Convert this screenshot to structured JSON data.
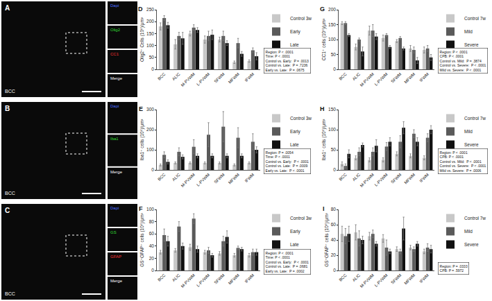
{
  "image_panels": [
    {
      "label": "A",
      "region": "BCC",
      "insets": [
        {
          "text": "Dapi",
          "color": "#4a6cff"
        },
        {
          "text": "Olig2",
          "color": "#33dd33"
        },
        {
          "text": "CC1",
          "color": "#ff3333"
        },
        {
          "text": "Merge",
          "color": "#ffffff"
        }
      ]
    },
    {
      "label": "B",
      "region": "BCC",
      "insets": [
        {
          "text": "Dapi",
          "color": "#4a6cff"
        },
        {
          "text": "Iba1",
          "color": "#33dd33"
        },
        {
          "text": "Merge",
          "color": "#ffffff"
        }
      ]
    },
    {
      "label": "C",
      "region": "BCC",
      "insets": [
        {
          "text": "Dapi",
          "color": "#4a6cff"
        },
        {
          "text": "GS",
          "color": "#33dd33"
        },
        {
          "text": "GFAP",
          "color": "#ff3333"
        },
        {
          "text": "Merge",
          "color": "#ffffff"
        }
      ]
    }
  ],
  "chart_data": [
    {
      "panel": "D",
      "type": "bar",
      "ylabel": "Olig2⁺ Cells (10⁶)/μm³",
      "categories": [
        "BCC",
        "ALIC",
        "M-PVWM",
        "L-PVWM",
        "SFWM",
        "MFWM",
        "IFWM"
      ],
      "series": [
        {
          "name": "Control 3w",
          "color": "#c8c8c8",
          "values": [
            180,
            105,
            150,
            125,
            125,
            30,
            35
          ],
          "errors": [
            15,
            20,
            10,
            15,
            10,
            5,
            5
          ]
        },
        {
          "name": "Early",
          "color": "#5a5a5a",
          "values": [
            215,
            140,
            175,
            140,
            140,
            110,
            80
          ],
          "errors": [
            10,
            15,
            12,
            20,
            20,
            20,
            10
          ]
        },
        {
          "name": "Late",
          "color": "#111111",
          "values": [
            185,
            130,
            165,
            145,
            110,
            65,
            55
          ],
          "errors": [
            12,
            25,
            10,
            20,
            10,
            10,
            15
          ]
        }
      ],
      "ylim": [
        0,
        250
      ],
      "yticks": [
        0,
        50,
        100,
        150,
        200,
        250
      ],
      "stats": [
        "Region: P < .0001",
        "Time: P < .0001",
        "Control vs. Early:  P = .0013",
        "Control vs. Late:  P = .7236",
        "Early vs. Late:  P = .0675"
      ]
    },
    {
      "panel": "E",
      "type": "bar",
      "ylabel": "Iba1⁺ cells (10⁶)/μm³",
      "categories": [
        "BCC",
        "ALIC",
        "M-PVWM",
        "L-PVWM",
        "SFWM",
        "MFWM",
        "IFWM"
      ],
      "series": [
        {
          "name": "Control 3w",
          "color": "#c8c8c8",
          "values": [
            25,
            35,
            35,
            35,
            35,
            25,
            35
          ],
          "errors": [
            5,
            5,
            5,
            5,
            5,
            5,
            5
          ]
        },
        {
          "name": "Early",
          "color": "#5a5a5a",
          "values": [
            75,
            90,
            115,
            175,
            215,
            160,
            140
          ],
          "errors": [
            15,
            20,
            35,
            60,
            75,
            50,
            40
          ]
        },
        {
          "name": "Late",
          "color": "#111111",
          "values": [
            40,
            65,
            70,
            70,
            70,
            70,
            100
          ],
          "errors": [
            10,
            10,
            10,
            10,
            10,
            10,
            15
          ]
        }
      ],
      "ylim": [
        0,
        300
      ],
      "yticks": [
        0,
        100,
        200,
        300
      ],
      "stats": [
        "Region: P = .0054",
        "Time: P < .0001",
        "Control vs. Early:  P < .0001",
        "Control vs. Late:  P = .0009",
        "Early vs. Late:  P < .0001"
      ]
    },
    {
      "panel": "F",
      "type": "bar",
      "ylabel": "GS⁺GFAP⁺ cells (10⁶)/μm³",
      "categories": [
        "BCC",
        "ALIC",
        "M-PVWM",
        "L-PVWM",
        "SFWM",
        "MFWM",
        "IFWM"
      ],
      "series": [
        {
          "name": "Control 3w",
          "color": "#c8c8c8",
          "values": [
            30,
            33,
            38,
            30,
            28,
            25,
            25
          ],
          "errors": [
            3,
            3,
            5,
            3,
            3,
            3,
            3
          ]
        },
        {
          "name": "Early",
          "color": "#5a5a5a",
          "values": [
            58,
            72,
            85,
            33,
            48,
            37,
            30
          ],
          "errors": [
            10,
            8,
            8,
            5,
            8,
            3,
            5
          ]
        },
        {
          "name": "Late",
          "color": "#111111",
          "values": [
            48,
            40,
            35,
            25,
            55,
            35,
            30
          ],
          "errors": [
            8,
            5,
            5,
            3,
            10,
            3,
            5
          ]
        }
      ],
      "ylim": [
        0,
        100
      ],
      "yticks": [
        0,
        20,
        40,
        60,
        80,
        100
      ],
      "stats": [
        "Region: P < .0001",
        "Time: P < .0001",
        "Control vs. Early:  P < .0001",
        "Control vs. Late:  P = .0681",
        "Early vs. Late:  P = .0002"
      ]
    },
    {
      "panel": "G",
      "type": "bar",
      "ylabel": "CC1⁺ cells (10⁶)/μm³",
      "categories": [
        "BCC",
        "ALIC",
        "M-PVWM",
        "L-PVWM",
        "SFWM",
        "MFWM",
        "IFWM"
      ],
      "series": [
        {
          "name": "Control 7w",
          "color": "#c8c8c8",
          "values": [
            155,
            75,
            130,
            105,
            95,
            70,
            65
          ],
          "errors": [
            5,
            10,
            15,
            10,
            5,
            10,
            10
          ]
        },
        {
          "name": "Mild",
          "color": "#5a5a5a",
          "values": [
            155,
            100,
            130,
            115,
            105,
            65,
            70
          ],
          "errors": [
            5,
            5,
            20,
            5,
            5,
            10,
            10
          ]
        },
        {
          "name": "Severe",
          "color": "#111111",
          "values": [
            115,
            60,
            110,
            75,
            70,
            30,
            40
          ],
          "errors": [
            5,
            15,
            10,
            5,
            5,
            10,
            10
          ]
        }
      ],
      "ylim": [
        0,
        200
      ],
      "yticks": [
        0,
        50,
        100,
        150,
        200
      ],
      "stats": [
        "Region: P < .0001",
        "CPB: P < .0001",
        "Control vs. Mild:  P = .3874",
        "Control vs. Severe:  P < .0001",
        "Mild vs. Severe:  P < .0001"
      ]
    },
    {
      "panel": "H",
      "type": "bar",
      "ylabel": "Iba1⁺ cells (10⁶)/μm³",
      "categories": [
        "BCC",
        "ALIC",
        "M-PVWM",
        "L-PVWM",
        "SFWM",
        "MFWM",
        "IFWM"
      ],
      "series": [
        {
          "name": "Control 7w",
          "color": "#c8c8c8",
          "values": [
            15,
            30,
            25,
            25,
            40,
            35,
            30
          ],
          "errors": [
            5,
            5,
            5,
            5,
            5,
            5,
            5
          ]
        },
        {
          "name": "Mild",
          "color": "#5a5a5a",
          "values": [
            10,
            45,
            45,
            58,
            70,
            90,
            80
          ],
          "errors": [
            5,
            10,
            10,
            10,
            15,
            10,
            10
          ]
        },
        {
          "name": "Severe",
          "color": "#111111",
          "values": [
            40,
            62,
            60,
            70,
            105,
            70,
            100
          ],
          "errors": [
            10,
            5,
            15,
            10,
            15,
            10,
            10
          ]
        }
      ],
      "ylim": [
        0,
        150
      ],
      "yticks": [
        0,
        50,
        100,
        150
      ],
      "stats": [
        "Region: P < .0001",
        "CPB: P < .0001",
        "Control vs. Mild:  P < .0001",
        "Control vs. Severe:  P < .0001",
        "Mild vs. Severe:  P = .0006"
      ]
    },
    {
      "panel": "I",
      "type": "bar",
      "ylabel": "GS⁺GFAP⁺ cells (10⁶)/μm³",
      "categories": [
        "BCC",
        "ALIC",
        "M-PVWM",
        "L-PVWM",
        "SFWM",
        "MFWM",
        "IFWM"
      ],
      "series": [
        {
          "name": "Control 7w",
          "color": "#c8c8c8",
          "values": [
            48,
            50,
            45,
            42,
            28,
            30,
            25
          ],
          "errors": [
            10,
            10,
            5,
            5,
            3,
            3,
            3
          ]
        },
        {
          "name": "Mild",
          "color": "#5a5a5a",
          "values": [
            45,
            42,
            48,
            30,
            25,
            28,
            30
          ],
          "errors": [
            10,
            10,
            5,
            10,
            3,
            3,
            5
          ]
        },
        {
          "name": "Severe",
          "color": "#111111",
          "values": [
            48,
            40,
            35,
            25,
            55,
            35,
            28
          ],
          "errors": [
            10,
            5,
            3,
            3,
            15,
            3,
            5
          ]
        }
      ],
      "ylim": [
        0,
        80
      ],
      "yticks": [
        0,
        20,
        40,
        60,
        80
      ],
      "stats": [
        "Region: P = .0333",
        "CPB: P = .5972"
      ]
    }
  ]
}
